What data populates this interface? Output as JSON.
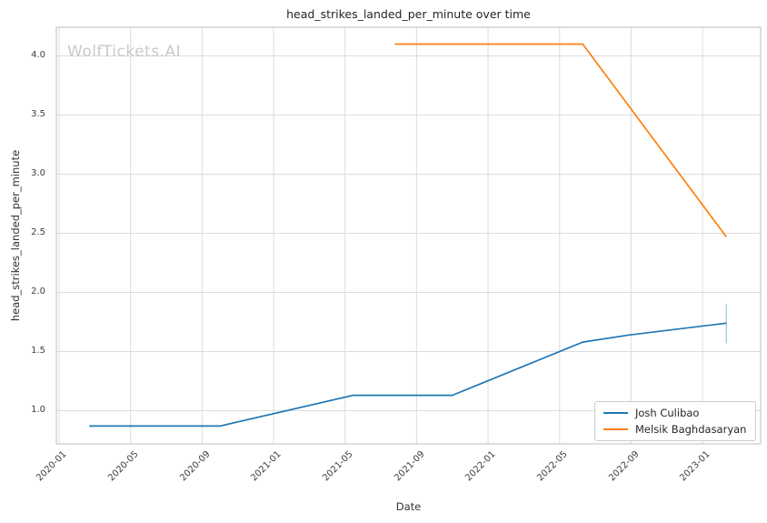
{
  "watermark": {
    "text": "WolfTickets.AI"
  },
  "colors": {
    "background": "#ffffff",
    "grid": "#dcdcdc",
    "spine": "#c9c9c9",
    "error_bar": "#a5c8e1",
    "series_blue": "#1f77b4",
    "series_orange": "#ff7f0e"
  },
  "chart_data": {
    "type": "line",
    "title": "head_strikes_landed_per_minute over time",
    "xlabel": "Date",
    "ylabel": "head_strikes_landed_per_minute",
    "x_ticks": [
      "2020-01",
      "2020-05",
      "2020-09",
      "2021-01",
      "2021-05",
      "2021-09",
      "2022-01",
      "2022-05",
      "2022-09",
      "2023-01"
    ],
    "y_ticks": [
      "1.0",
      "1.5",
      "2.0",
      "2.5",
      "3.0",
      "3.5",
      "4.0"
    ],
    "xlim": [
      "2019-12-27",
      "2023-04-08"
    ],
    "ylim": [
      0.72,
      4.24
    ],
    "grid": true,
    "legend_position": "lower right",
    "series": [
      {
        "name": "Josh Culibao",
        "color": "#1f77b4",
        "points": [
          {
            "date": "2020-02-22",
            "value": 0.87
          },
          {
            "date": "2020-10-01",
            "value": 0.87
          },
          {
            "date": "2021-05-15",
            "value": 1.13
          },
          {
            "date": "2021-11-01",
            "value": 1.13
          },
          {
            "date": "2022-06-10",
            "value": 1.58
          },
          {
            "date": "2022-08-28",
            "value": 1.64
          },
          {
            "date": "2023-02-11",
            "value": 1.74
          }
        ],
        "error_bar": {
          "date": "2023-02-11",
          "low": 1.57,
          "high": 1.9
        }
      },
      {
        "name": "Melsik Baghdasaryan",
        "color": "#ff7f0e",
        "points": [
          {
            "date": "2021-07-25",
            "value": 4.1
          },
          {
            "date": "2022-06-10",
            "value": 4.1
          },
          {
            "date": "2023-02-11",
            "value": 2.47
          }
        ]
      }
    ]
  }
}
